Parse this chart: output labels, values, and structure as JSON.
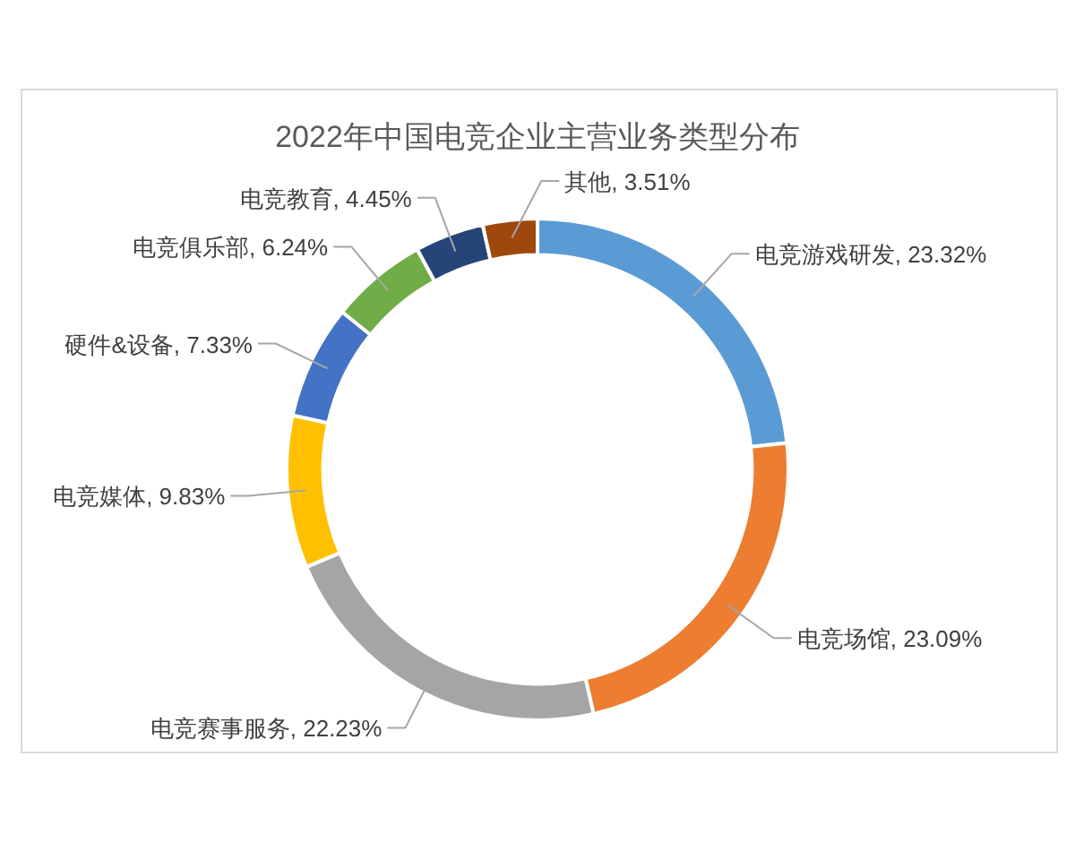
{
  "chart_data": {
    "type": "donut",
    "title": "2022年中国电竞企业主营业务类型分布",
    "categories": [
      "电竞游戏研发",
      "电竞场馆",
      "电竞赛事服务",
      "电竞媒体",
      "硬件&设备",
      "电竞俱乐部",
      "电竞教育",
      "其他"
    ],
    "values": [
      23.32,
      23.09,
      22.23,
      9.83,
      7.33,
      6.24,
      4.45,
      3.51
    ],
    "colors": [
      "#5b9bd5",
      "#ed7d31",
      "#a5a5a5",
      "#ffc000",
      "#4472c4",
      "#70ad47",
      "#264478",
      "#9e480e"
    ],
    "value_labels": [
      ", 23.32%",
      ", 23.09%",
      ", 22.23%",
      ", 9.83%",
      ", 7.33%",
      ", 6.24%",
      ", 4.45%",
      ", 3.51%"
    ]
  }
}
